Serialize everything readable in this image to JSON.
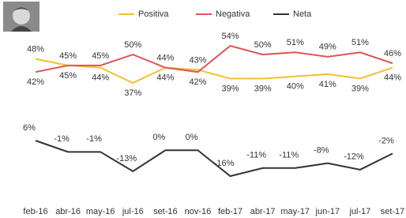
{
  "chart_data": {
    "type": "line",
    "categories": [
      "feb-16",
      "abr-16",
      "may-16",
      "jul-16",
      "set-16",
      "nov-16",
      "feb-17",
      "abr-17",
      "may-17",
      "jun-17",
      "jul-17",
      "set-17"
    ],
    "series": [
      {
        "name": "Positiva",
        "color": "#f2c12e",
        "label_color": "#c9964a",
        "values": [
          48,
          45,
          44,
          37,
          44,
          43,
          39,
          39,
          40,
          41,
          39,
          44
        ],
        "value_labels": [
          "48%",
          "45%",
          "44%",
          "37%",
          "44%",
          "43%",
          "39%",
          "39%",
          "40%",
          "41%",
          "39%",
          "44%"
        ]
      },
      {
        "name": "Negativa",
        "color": "#e05555",
        "label_color": "#c0392b",
        "values": [
          42,
          45,
          45,
          50,
          44,
          42,
          54,
          50,
          51,
          49,
          51,
          46
        ],
        "value_labels": [
          "42%",
          "45%",
          "45%",
          "50%",
          "44%",
          "42%",
          "54%",
          "50%",
          "51%",
          "49%",
          "51%",
          "46%"
        ]
      },
      {
        "name": "Neta",
        "color": "#333333",
        "label_color": "#333333",
        "values": [
          6,
          -1,
          -1,
          -13,
          0,
          0,
          -16,
          -11,
          -11,
          -8,
          -12,
          -2
        ],
        "value_labels": [
          "6%",
          "-1%",
          "-1%",
          "-13%",
          "0%",
          "0%",
          "-16%",
          "-11%",
          "-11%",
          "-8%",
          "-12%",
          "-2%"
        ]
      }
    ]
  }
}
